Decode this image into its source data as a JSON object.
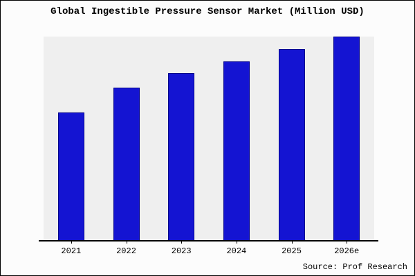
{
  "chart_data": {
    "type": "bar",
    "title": "Global Ingestible Pressure Sensor Market (Million USD)",
    "categories": [
      "2021",
      "2022",
      "2023",
      "2024",
      "2025",
      "2026e"
    ],
    "values": [
      63,
      75,
      82,
      88,
      94,
      100
    ],
    "value_note": "No y-axis or data labels are visible; values are a relative index estimated from bar heights with 2026e = 100",
    "xlabel": "",
    "ylabel": "",
    "ylim": [
      0,
      100
    ],
    "grid": false,
    "legend": null,
    "bar_color": "#1414d2",
    "bar_edge_color": "#00008b",
    "plot_background": "#efefef",
    "source": "Source: Prof Research"
  }
}
